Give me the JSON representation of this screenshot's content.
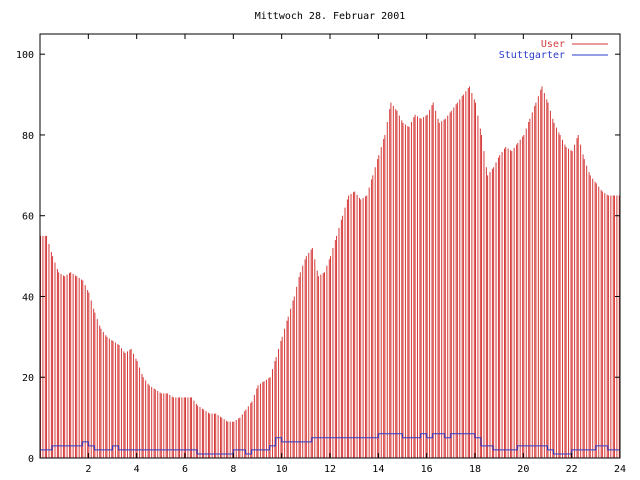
{
  "chart_data": {
    "type": "bar",
    "title": "Mittwoch 28. Februar 2001",
    "xlabel": "",
    "ylabel": "",
    "xlim": [
      0,
      24
    ],
    "ylim": [
      0,
      105
    ],
    "x_ticks": [
      2,
      4,
      6,
      8,
      10,
      12,
      14,
      16,
      18,
      20,
      22,
      24
    ],
    "y_ticks": [
      0,
      20,
      40,
      60,
      80,
      100
    ],
    "grid": false,
    "legend_position": "top-right",
    "series": [
      {
        "name": "User",
        "style": "impulses",
        "color": "#d63a3a",
        "points": [
          [
            0.0,
            55
          ],
          [
            0.25,
            55
          ],
          [
            0.5,
            50
          ],
          [
            0.75,
            46
          ],
          [
            1.0,
            45
          ],
          [
            1.25,
            46
          ],
          [
            1.5,
            45
          ],
          [
            1.75,
            44
          ],
          [
            2.0,
            41
          ],
          [
            2.25,
            36
          ],
          [
            2.5,
            32
          ],
          [
            2.75,
            30
          ],
          [
            3.0,
            29
          ],
          [
            3.25,
            28
          ],
          [
            3.5,
            26
          ],
          [
            3.75,
            27
          ],
          [
            4.0,
            24
          ],
          [
            4.25,
            20
          ],
          [
            4.5,
            18
          ],
          [
            4.75,
            17
          ],
          [
            5.0,
            16
          ],
          [
            5.25,
            16
          ],
          [
            5.5,
            15
          ],
          [
            5.75,
            15
          ],
          [
            6.0,
            15
          ],
          [
            6.25,
            15
          ],
          [
            6.5,
            13
          ],
          [
            6.75,
            12
          ],
          [
            7.0,
            11
          ],
          [
            7.25,
            11
          ],
          [
            7.5,
            10
          ],
          [
            7.75,
            9
          ],
          [
            8.0,
            9
          ],
          [
            8.25,
            10
          ],
          [
            8.5,
            12
          ],
          [
            8.75,
            14
          ],
          [
            9.0,
            18
          ],
          [
            9.25,
            19
          ],
          [
            9.5,
            20
          ],
          [
            9.75,
            25
          ],
          [
            10.0,
            30
          ],
          [
            10.25,
            35
          ],
          [
            10.5,
            40
          ],
          [
            10.75,
            46
          ],
          [
            11.0,
            50
          ],
          [
            11.25,
            52
          ],
          [
            11.5,
            45
          ],
          [
            11.75,
            46
          ],
          [
            12.0,
            50
          ],
          [
            12.25,
            55
          ],
          [
            12.5,
            60
          ],
          [
            12.75,
            65
          ],
          [
            13.0,
            66
          ],
          [
            13.25,
            64
          ],
          [
            13.5,
            65
          ],
          [
            13.75,
            70
          ],
          [
            14.0,
            75
          ],
          [
            14.25,
            80
          ],
          [
            14.5,
            88
          ],
          [
            14.75,
            86
          ],
          [
            15.0,
            83
          ],
          [
            15.25,
            82
          ],
          [
            15.5,
            85
          ],
          [
            15.75,
            84
          ],
          [
            16.0,
            85
          ],
          [
            16.25,
            88
          ],
          [
            16.5,
            83
          ],
          [
            16.75,
            84
          ],
          [
            17.0,
            86
          ],
          [
            17.25,
            88
          ],
          [
            17.5,
            90
          ],
          [
            17.75,
            92
          ],
          [
            18.0,
            88
          ],
          [
            18.25,
            80
          ],
          [
            18.5,
            70
          ],
          [
            18.75,
            72
          ],
          [
            19.0,
            75
          ],
          [
            19.25,
            77
          ],
          [
            19.5,
            76
          ],
          [
            19.75,
            78
          ],
          [
            20.0,
            80
          ],
          [
            20.25,
            84
          ],
          [
            20.5,
            88
          ],
          [
            20.75,
            92
          ],
          [
            21.0,
            88
          ],
          [
            21.25,
            83
          ],
          [
            21.5,
            80
          ],
          [
            21.75,
            77
          ],
          [
            22.0,
            76
          ],
          [
            22.25,
            80
          ],
          [
            22.5,
            74
          ],
          [
            22.75,
            70
          ],
          [
            23.0,
            68
          ],
          [
            23.25,
            66
          ],
          [
            23.5,
            65
          ],
          [
            23.75,
            65
          ]
        ]
      },
      {
        "name": "Stuttgarter",
        "style": "line",
        "color": "#2b3cc8",
        "points": [
          [
            0.0,
            2
          ],
          [
            0.25,
            2
          ],
          [
            0.5,
            3
          ],
          [
            0.75,
            3
          ],
          [
            1.0,
            3
          ],
          [
            1.25,
            3
          ],
          [
            1.5,
            3
          ],
          [
            1.75,
            4
          ],
          [
            2.0,
            3
          ],
          [
            2.25,
            2
          ],
          [
            2.5,
            2
          ],
          [
            2.75,
            2
          ],
          [
            3.0,
            3
          ],
          [
            3.25,
            2
          ],
          [
            3.5,
            2
          ],
          [
            3.75,
            2
          ],
          [
            4.0,
            2
          ],
          [
            4.25,
            2
          ],
          [
            4.5,
            2
          ],
          [
            4.75,
            2
          ],
          [
            5.0,
            2
          ],
          [
            5.25,
            2
          ],
          [
            5.5,
            2
          ],
          [
            5.75,
            2
          ],
          [
            6.0,
            2
          ],
          [
            6.25,
            2
          ],
          [
            6.5,
            1
          ],
          [
            6.75,
            1
          ],
          [
            7.0,
            1
          ],
          [
            7.25,
            1
          ],
          [
            7.5,
            1
          ],
          [
            7.75,
            1
          ],
          [
            8.0,
            2
          ],
          [
            8.25,
            2
          ],
          [
            8.5,
            1
          ],
          [
            8.75,
            2
          ],
          [
            9.0,
            2
          ],
          [
            9.25,
            2
          ],
          [
            9.5,
            3
          ],
          [
            9.75,
            5
          ],
          [
            10.0,
            4
          ],
          [
            10.25,
            4
          ],
          [
            10.5,
            4
          ],
          [
            10.75,
            4
          ],
          [
            11.0,
            4
          ],
          [
            11.25,
            5
          ],
          [
            11.5,
            5
          ],
          [
            11.75,
            5
          ],
          [
            12.0,
            5
          ],
          [
            12.25,
            5
          ],
          [
            12.5,
            5
          ],
          [
            12.75,
            5
          ],
          [
            13.0,
            5
          ],
          [
            13.25,
            5
          ],
          [
            13.5,
            5
          ],
          [
            13.75,
            5
          ],
          [
            14.0,
            6
          ],
          [
            14.25,
            6
          ],
          [
            14.5,
            6
          ],
          [
            14.75,
            6
          ],
          [
            15.0,
            5
          ],
          [
            15.25,
            5
          ],
          [
            15.5,
            5
          ],
          [
            15.75,
            6
          ],
          [
            16.0,
            5
          ],
          [
            16.25,
            6
          ],
          [
            16.5,
            6
          ],
          [
            16.75,
            5
          ],
          [
            17.0,
            6
          ],
          [
            17.25,
            6
          ],
          [
            17.5,
            6
          ],
          [
            17.75,
            6
          ],
          [
            18.0,
            5
          ],
          [
            18.25,
            3
          ],
          [
            18.5,
            3
          ],
          [
            18.75,
            2
          ],
          [
            19.0,
            2
          ],
          [
            19.25,
            2
          ],
          [
            19.5,
            2
          ],
          [
            19.75,
            3
          ],
          [
            20.0,
            3
          ],
          [
            20.25,
            3
          ],
          [
            20.5,
            3
          ],
          [
            20.75,
            3
          ],
          [
            21.0,
            2
          ],
          [
            21.25,
            1
          ],
          [
            21.5,
            1
          ],
          [
            21.75,
            1
          ],
          [
            22.0,
            2
          ],
          [
            22.25,
            2
          ],
          [
            22.5,
            2
          ],
          [
            22.75,
            2
          ],
          [
            23.0,
            3
          ],
          [
            23.25,
            3
          ],
          [
            23.5,
            2
          ],
          [
            23.75,
            2
          ]
        ]
      }
    ]
  }
}
